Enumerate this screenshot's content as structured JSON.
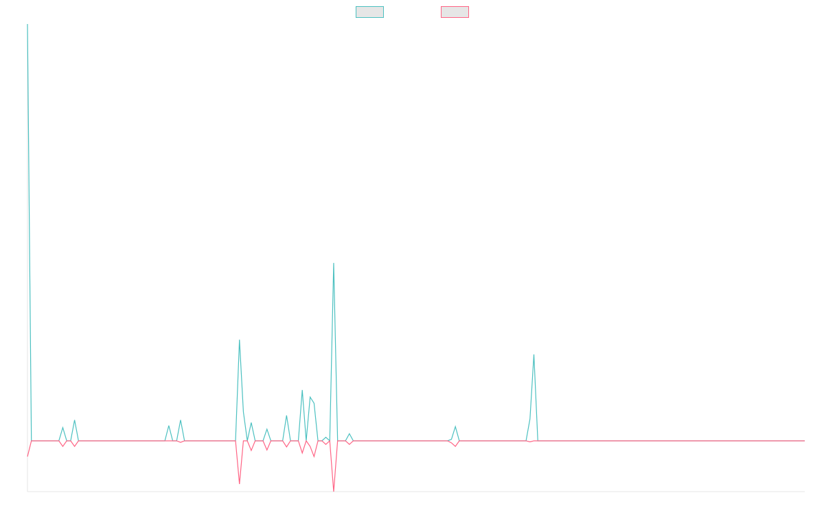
{
  "chart_data": {
    "type": "line",
    "x": [
      0,
      1,
      8,
      9,
      10,
      11,
      12,
      13,
      35,
      36,
      37,
      38,
      39,
      40,
      53,
      54,
      55,
      56,
      57,
      58,
      60,
      61,
      62,
      65,
      66,
      67,
      69,
      70,
      71,
      72,
      73,
      74,
      75,
      76,
      77,
      78,
      79,
      81,
      82,
      83,
      107,
      108,
      109,
      110,
      127,
      128,
      129,
      130,
      198
    ],
    "series": [
      {
        "color": "#4bc0c0",
        "values": [
          82,
          0,
          0,
          2.6,
          0,
          0,
          4.1,
          0,
          0,
          3,
          0,
          0,
          4.1,
          0,
          0,
          19.9,
          5.7,
          0,
          3.6,
          0,
          0,
          2.3,
          0,
          0,
          5,
          0,
          0,
          10,
          0,
          8.6,
          7.4,
          0,
          0,
          0.7,
          0,
          35,
          0,
          0,
          1.4,
          0,
          0,
          0.3,
          2.8,
          0,
          0,
          4.3,
          17,
          0,
          0
        ]
      },
      {
        "color": "#ff6384",
        "values": [
          -3.1,
          0,
          0,
          -1.1,
          0,
          0,
          -1.1,
          0,
          0,
          0,
          0,
          0,
          -0.3,
          0,
          0,
          -8.5,
          0,
          0,
          -1.9,
          0,
          0,
          -1.8,
          0,
          0,
          -1.2,
          0,
          0,
          -2.4,
          0,
          -1.1,
          -3.1,
          0,
          0,
          -0.7,
          0,
          -10,
          0,
          0,
          -0.7,
          0,
          0,
          -0.4,
          -1.1,
          0,
          0,
          -0.2,
          0,
          0,
          0
        ]
      }
    ],
    "xlim": [
      0,
      198
    ],
    "ylim": [
      -10,
      82
    ]
  }
}
